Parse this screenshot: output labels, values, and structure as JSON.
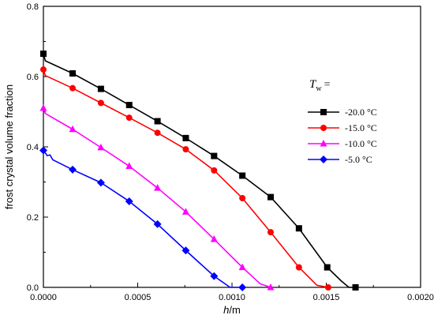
{
  "chart_data": {
    "type": "line",
    "xlabel": {
      "main": "h",
      "unit": "/m"
    },
    "ylabel": "frost crystal volume fraction",
    "xlim": [
      0.0,
      0.002
    ],
    "ylim": [
      0.0,
      0.8
    ],
    "x_ticks": [
      "0.0000",
      "0.0005",
      "0.0010",
      "0.0015",
      "0.0020"
    ],
    "y_ticks": [
      "0.0",
      "0.2",
      "0.4",
      "0.6",
      "0.8"
    ],
    "grid": false,
    "legend": {
      "placement": "right-middle",
      "title_main": "T",
      "title_sub": "w",
      "title_suffix": "="
    },
    "series": [
      {
        "name": "-20.0 °C",
        "color": "#000000",
        "marker": "square",
        "markers": [
          [
            0.0,
            0.665
          ],
          [
            0.000155,
            0.609
          ],
          [
            0.000305,
            0.565
          ],
          [
            0.000455,
            0.519
          ],
          [
            0.000605,
            0.473
          ],
          [
            0.000755,
            0.425
          ],
          [
            0.000905,
            0.374
          ],
          [
            0.001055,
            0.318
          ],
          [
            0.001205,
            0.257
          ],
          [
            0.001355,
            0.168
          ],
          [
            0.001505,
            0.057
          ],
          [
            0.001655,
            0.0
          ]
        ],
        "line": [
          [
            0.0,
            0.665
          ],
          [
            1e-05,
            0.645
          ],
          [
            0.000155,
            0.609
          ],
          [
            0.000305,
            0.565
          ],
          [
            0.000455,
            0.519
          ],
          [
            0.000605,
            0.473
          ],
          [
            0.000755,
            0.425
          ],
          [
            0.000905,
            0.374
          ],
          [
            0.001055,
            0.318
          ],
          [
            0.001205,
            0.257
          ],
          [
            0.001355,
            0.168
          ],
          [
            0.001505,
            0.057
          ],
          [
            0.00158,
            0.018
          ],
          [
            0.00162,
            0.0
          ],
          [
            0.001655,
            0.0
          ]
        ]
      },
      {
        "name": "-15.0 °C",
        "color": "#ff0000",
        "marker": "circle",
        "markers": [
          [
            0.0,
            0.62
          ],
          [
            0.000155,
            0.567
          ],
          [
            0.000305,
            0.525
          ],
          [
            0.000455,
            0.483
          ],
          [
            0.000605,
            0.44
          ],
          [
            0.000755,
            0.393
          ],
          [
            0.000905,
            0.333
          ],
          [
            0.001055,
            0.254
          ],
          [
            0.001205,
            0.157
          ],
          [
            0.001355,
            0.057
          ],
          [
            0.00151,
            0.0
          ]
        ],
        "line": [
          [
            0.0,
            0.62
          ],
          [
            1e-05,
            0.603
          ],
          [
            0.000155,
            0.567
          ],
          [
            0.000305,
            0.525
          ],
          [
            0.000455,
            0.483
          ],
          [
            0.000605,
            0.44
          ],
          [
            0.000755,
            0.393
          ],
          [
            0.000905,
            0.333
          ],
          [
            0.001055,
            0.254
          ],
          [
            0.001205,
            0.157
          ],
          [
            0.001355,
            0.057
          ],
          [
            0.00145,
            0.006
          ],
          [
            0.00151,
            0.0
          ]
        ]
      },
      {
        "name": "-10.0 °C",
        "color": "#ff00ff",
        "marker": "triangle",
        "markers": [
          [
            0.0,
            0.51
          ],
          [
            0.000155,
            0.45
          ],
          [
            0.000305,
            0.398
          ],
          [
            0.000455,
            0.345
          ],
          [
            0.000605,
            0.283
          ],
          [
            0.000755,
            0.215
          ],
          [
            0.000905,
            0.137
          ],
          [
            0.001055,
            0.057
          ],
          [
            0.001205,
            0.0
          ]
        ],
        "line": [
          [
            0.0,
            0.51
          ],
          [
            1e-05,
            0.495
          ],
          [
            0.000155,
            0.45
          ],
          [
            0.000305,
            0.398
          ],
          [
            0.000455,
            0.345
          ],
          [
            0.000605,
            0.283
          ],
          [
            0.000755,
            0.215
          ],
          [
            0.000905,
            0.137
          ],
          [
            0.001055,
            0.057
          ],
          [
            0.00115,
            0.01
          ],
          [
            0.001205,
            0.0
          ]
        ]
      },
      {
        "name": "-5.0 °C",
        "color": "#0000ff",
        "marker": "diamond",
        "markers": [
          [
            0.0,
            0.39
          ],
          [
            0.000155,
            0.335
          ],
          [
            0.000305,
            0.298
          ],
          [
            0.000455,
            0.245
          ],
          [
            0.000605,
            0.18
          ],
          [
            0.000755,
            0.105
          ],
          [
            0.000905,
            0.032
          ],
          [
            0.001055,
            0.0
          ]
        ],
        "line": [
          [
            0.0,
            0.39
          ],
          [
            1e-05,
            0.383
          ],
          [
            2e-05,
            0.375
          ],
          [
            3.5e-05,
            0.377
          ],
          [
            5e-05,
            0.363
          ],
          [
            0.000155,
            0.335
          ],
          [
            0.000305,
            0.298
          ],
          [
            0.000455,
            0.245
          ],
          [
            0.000605,
            0.18
          ],
          [
            0.000755,
            0.105
          ],
          [
            0.000905,
            0.032
          ],
          [
            0.00099,
            0.0
          ],
          [
            0.001055,
            0.0
          ]
        ]
      }
    ]
  }
}
